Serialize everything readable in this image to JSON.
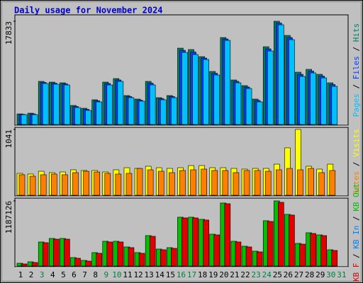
{
  "chart_data": [
    {
      "type": "bar",
      "title": "Daily usage for November 2024",
      "categories": [
        "1",
        "2",
        "3",
        "4",
        "5",
        "6",
        "7",
        "8",
        "9",
        "10",
        "11",
        "12",
        "13",
        "14",
        "15",
        "16",
        "17",
        "18",
        "19",
        "20",
        "21",
        "22",
        "23",
        "24",
        "25",
        "26",
        "27",
        "28",
        "29",
        "30",
        "31"
      ],
      "category_colors": [
        "#000000",
        "#000000",
        "#008040",
        "#000000",
        "#000000",
        "#000000",
        "#000000",
        "#000000",
        "#008040",
        "#008040",
        "#000000",
        "#000000",
        "#000000",
        "#000000",
        "#000000",
        "#008040",
        "#008040",
        "#000000",
        "#000000",
        "#000000",
        "#000000",
        "#000000",
        "#008040",
        "#008040",
        "#000000",
        "#000000",
        "#000000",
        "#000000",
        "#000000",
        "#008040",
        "#008040"
      ],
      "ylim": [
        0,
        18810
      ],
      "yticks": [
        17833
      ],
      "legend_separator": " / ",
      "series": [
        {
          "name": "Pages",
          "color": "#00c0ff",
          "values": [
            1709,
            1709,
            7082,
            6960,
            6838,
            2930,
            2442,
            3907,
            6838,
            7448,
            4640,
            4029,
            6838,
            4274,
            4640,
            12454,
            12088,
            11233,
            8547,
            14530,
            7204,
            6227,
            3907,
            12698,
            17216,
            14652,
            8303,
            8913,
            8059,
            6593,
            null
          ]
        },
        {
          "name": "Files",
          "color": "#0040ff",
          "values": [
            1770,
            1832,
            7265,
            7143,
            7021,
            3114,
            2625,
            4090,
            7082,
            7692,
            4823,
            4212,
            7143,
            4457,
            4823,
            12820,
            12515,
            11477,
            8852,
            14774,
            7448,
            6471,
            4152,
            13064,
            17524,
            15018,
            8669,
            9218,
            8364,
            6898,
            null
          ]
        },
        {
          "name": "Hits",
          "color": "#008060",
          "values": [
            1832,
            1954,
            7448,
            7326,
            7204,
            3297,
            2808,
            4274,
            7326,
            7937,
            5006,
            4396,
            7448,
            4640,
            5006,
            13187,
            12943,
            11722,
            9158,
            15018,
            7692,
            6716,
            4396,
            13431,
            17833,
            15385,
            9035,
            9524,
            8669,
            7204,
            null
          ]
        }
      ]
    },
    {
      "type": "bar",
      "ylim": [
        0,
        1063
      ],
      "yticks": [
        1041
      ],
      "legend_separator": " / ",
      "series": [
        {
          "name": "Sites",
          "color": "#ff8000",
          "values": [
            325,
            302,
            325,
            336,
            325,
            358,
            380,
            369,
            347,
            336,
            347,
            425,
            403,
            380,
            358,
            392,
            403,
            414,
            392,
            392,
            358,
            392,
            392,
            380,
            403,
            425,
            403,
            425,
            358,
            392,
            null
          ]
        },
        {
          "name": "Visits",
          "color": "#ffff00",
          "values": [
            347,
            336,
            380,
            358,
            369,
            403,
            392,
            392,
            369,
            403,
            436,
            425,
            459,
            436,
            425,
            436,
            470,
            470,
            436,
            436,
            425,
            414,
            425,
            425,
            492,
            750,
            1041,
            459,
            414,
            492,
            null
          ]
        }
      ]
    },
    {
      "type": "bar",
      "ylim": [
        0,
        1225000
      ],
      "yticks": [
        1187126
      ],
      "legend_separator": " / ",
      "series": [
        {
          "name": "KB F",
          "color": "#e00000",
          "values": [
            38712,
            64520,
            425832,
            490352,
            490352,
            141944,
            90328,
            232272,
            438736,
            438736,
            335504,
            232272,
            541968,
            296792,
            322600,
            877472,
            877472,
            838760,
            567776,
            1135552,
            438736,
            348408,
            258080,
            812952,
            1161360,
            929088,
            400024,
            593584,
            554872,
            283888,
            null
          ]
        },
        {
          "name": "KB In",
          "color": "#0080ff",
          "values": [
            null,
            null,
            null,
            null,
            null,
            null,
            null,
            null,
            null,
            null,
            null,
            null,
            null,
            null,
            null,
            null,
            null,
            null,
            null,
            null,
            null,
            null,
            null,
            null,
            null,
            null,
            null,
            null,
            null,
            null,
            null
          ]
        },
        {
          "name": "KB Out",
          "color": "#00c000",
          "values": [
            51616,
            77424,
            438736,
            503256,
            503256,
            154848,
            103232,
            245176,
            451640,
            451640,
            348408,
            245176,
            554872,
            309696,
            335504,
            890376,
            890376,
            851664,
            580680,
            1148456,
            451640,
            361312,
            270984,
            825856,
            1187126,
            941992,
            412928,
            606488,
            567776,
            296792,
            null
          ]
        }
      ]
    }
  ]
}
